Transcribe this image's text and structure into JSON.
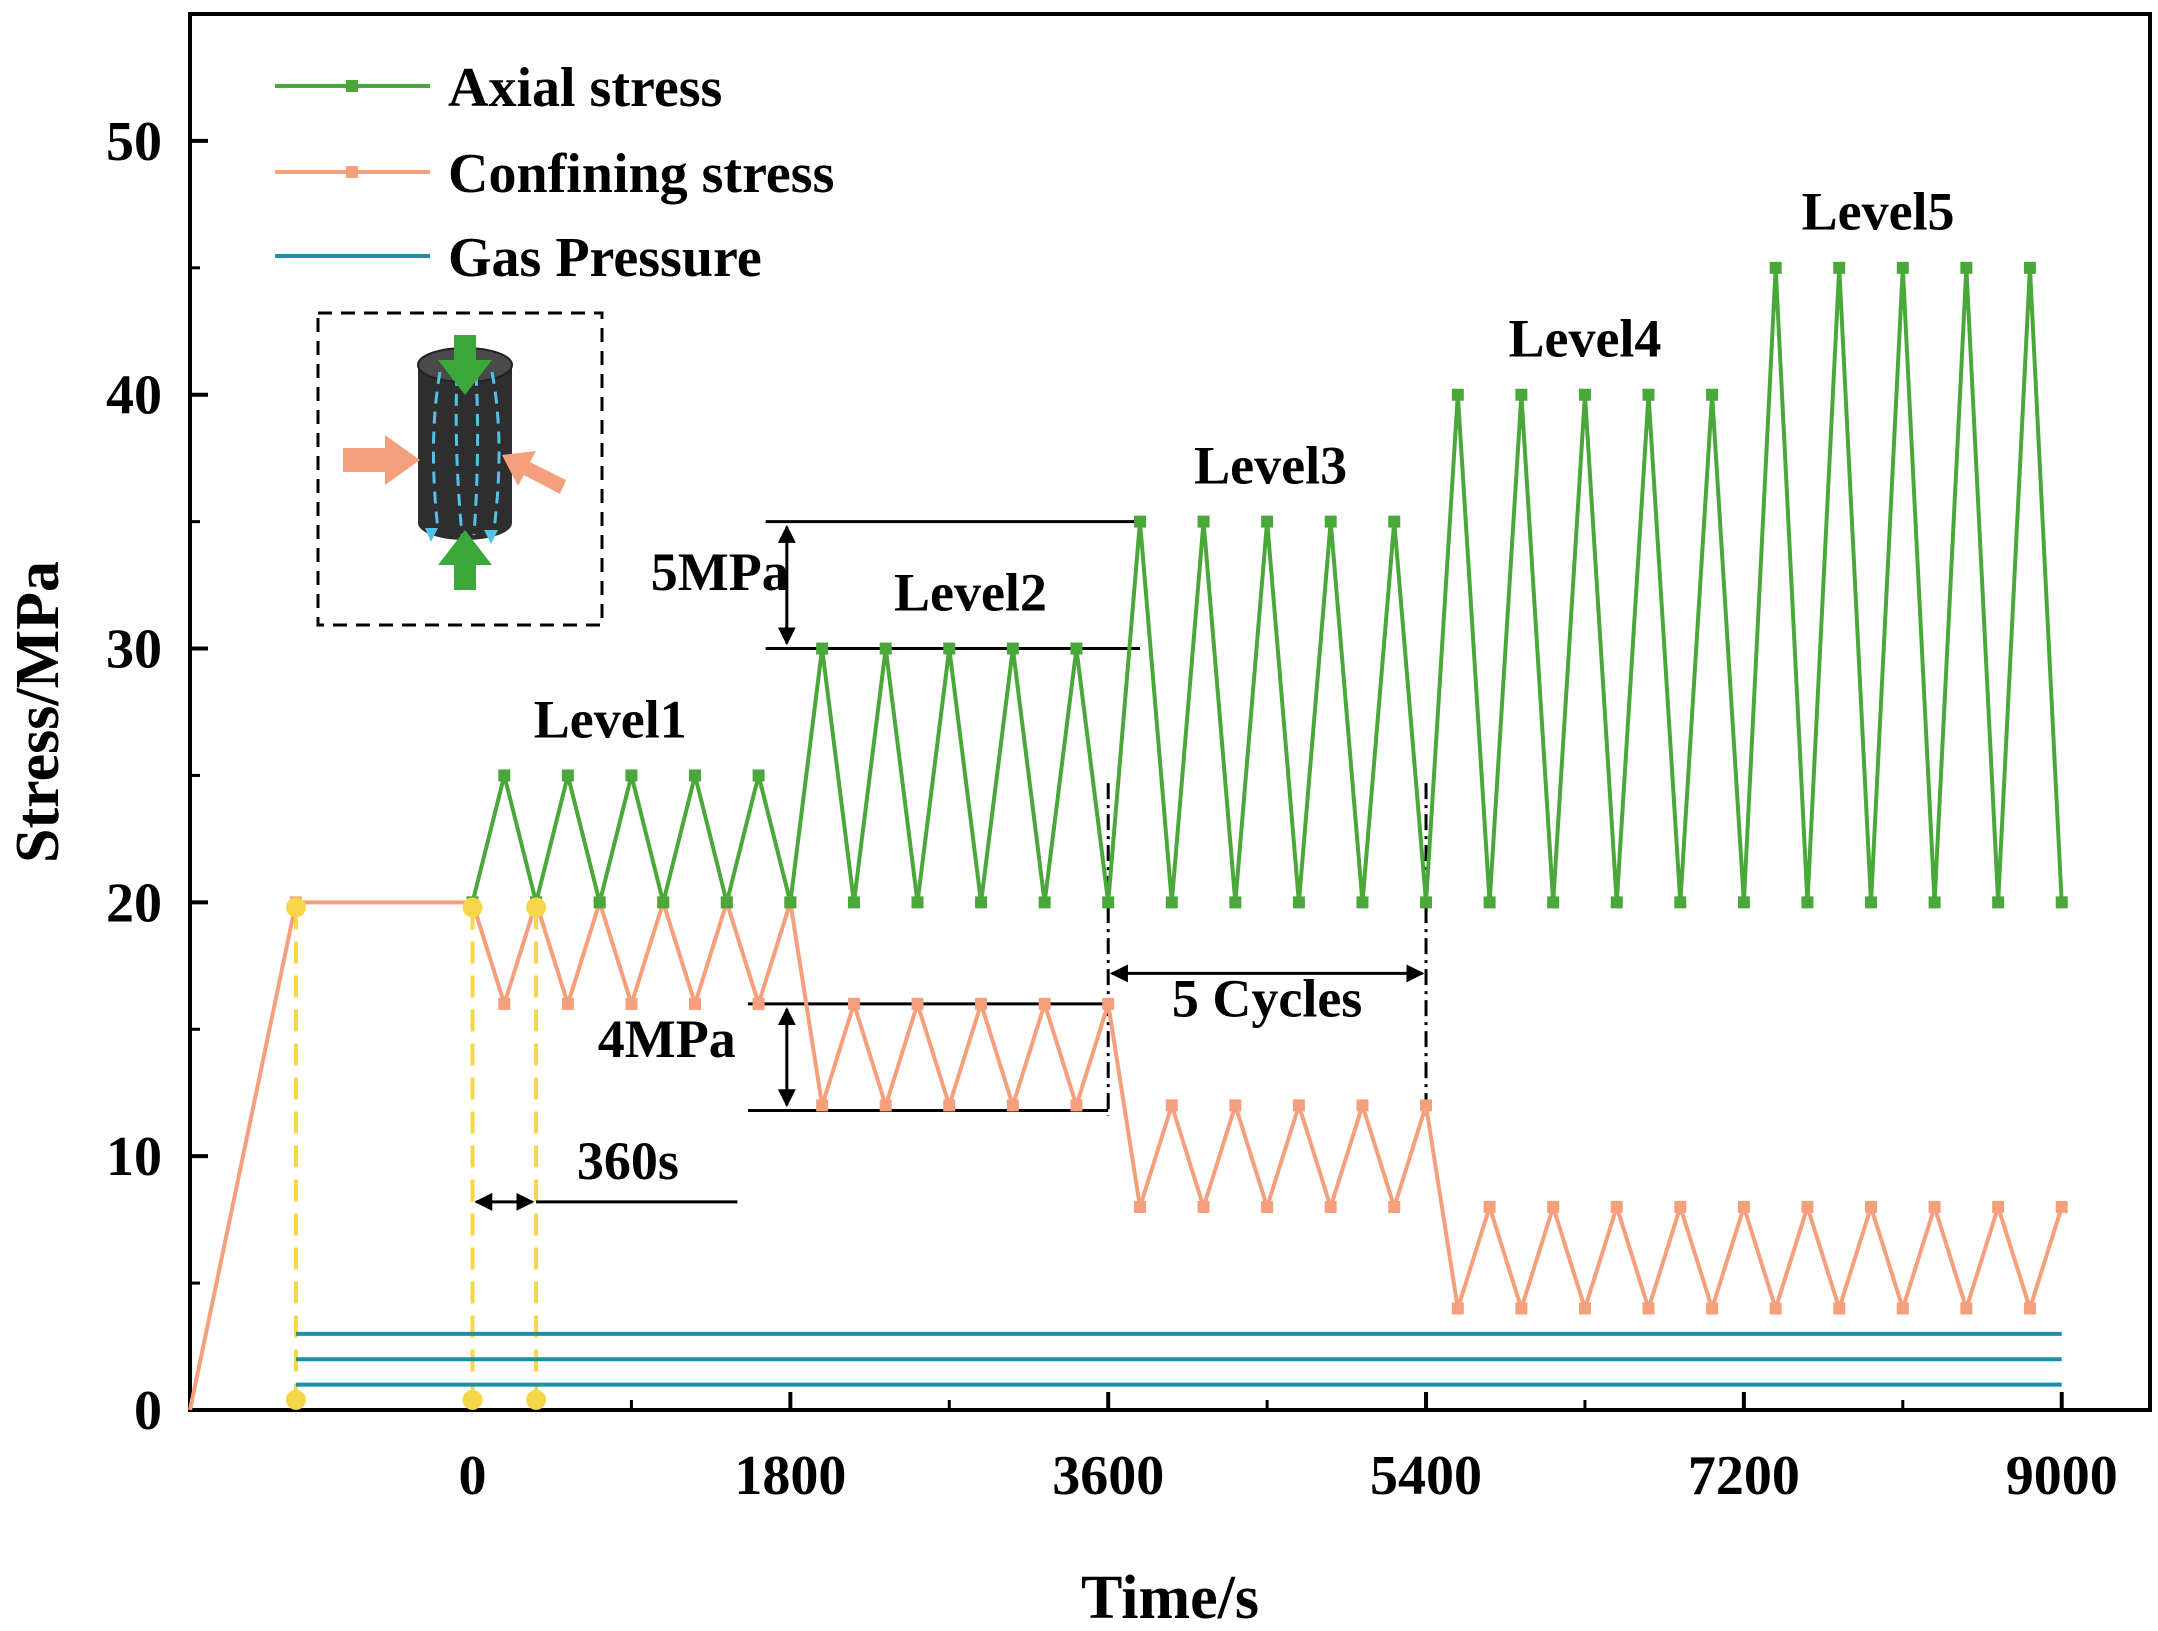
{
  "chart_data": {
    "type": "line",
    "xlabel": "Time/s",
    "ylabel": "Stress/MPa",
    "xlim": [
      -1600,
      9500
    ],
    "ylim": [
      0,
      55
    ],
    "xticks": [
      0,
      1800,
      3600,
      5400,
      7200,
      9000
    ],
    "yticks": [
      0,
      10,
      20,
      30,
      40,
      50
    ],
    "legend_position": "top-left",
    "series": [
      {
        "name": "Axial stress",
        "color": "#4aa83a",
        "marker": "square",
        "x": [
          0,
          180,
          360,
          540,
          720,
          900,
          1080,
          1260,
          1440,
          1620,
          1800,
          1980,
          2160,
          2340,
          2520,
          2700,
          2880,
          3060,
          3240,
          3420,
          3600,
          3780,
          3960,
          4140,
          4320,
          4500,
          4680,
          4860,
          5040,
          5220,
          5400,
          5580,
          5760,
          5940,
          6120,
          6300,
          6480,
          6660,
          6840,
          7020,
          7200,
          7380,
          7560,
          7740,
          7920,
          8100,
          8280,
          8460,
          8640,
          8820,
          9000
        ],
        "y": [
          20,
          25,
          20,
          25,
          20,
          25,
          20,
          25,
          20,
          25,
          20,
          30,
          20,
          30,
          20,
          30,
          20,
          30,
          20,
          30,
          20,
          35,
          20,
          35,
          20,
          35,
          20,
          35,
          20,
          35,
          20,
          40,
          20,
          40,
          20,
          40,
          20,
          40,
          20,
          40,
          20,
          45,
          20,
          45,
          20,
          45,
          20,
          45,
          20,
          45,
          20
        ]
      },
      {
        "name": "Confining stress",
        "color": "#f5a07c",
        "marker": "square",
        "x": [
          -1600,
          -1000,
          0,
          180,
          360,
          540,
          720,
          900,
          1080,
          1260,
          1440,
          1620,
          1800,
          1980,
          2160,
          2340,
          2520,
          2700,
          2880,
          3060,
          3240,
          3420,
          3600,
          3780,
          3960,
          4140,
          4320,
          4500,
          4680,
          4860,
          5040,
          5220,
          5400,
          5580,
          5760,
          5940,
          6120,
          6300,
          6480,
          6660,
          6840,
          7020,
          7200,
          7380,
          7560,
          7740,
          7920,
          8100,
          8280,
          8460,
          8640,
          8820,
          9000
        ],
        "y": [
          0,
          20,
          20,
          16,
          20,
          16,
          20,
          16,
          20,
          16,
          20,
          16,
          20,
          12,
          16,
          12,
          16,
          12,
          16,
          12,
          16,
          12,
          16,
          8,
          12,
          8,
          12,
          8,
          12,
          8,
          12,
          8,
          12,
          4,
          8,
          4,
          8,
          4,
          8,
          4,
          8,
          4,
          8,
          4,
          8,
          4,
          8,
          4,
          8,
          4,
          8,
          4,
          8
        ]
      },
      {
        "name": "Gas Pressure",
        "color": "#1f8ea8",
        "marker": "none",
        "levels": [
          1,
          2,
          3
        ],
        "x_range": [
          -1000,
          9000
        ]
      }
    ],
    "reference_markers": {
      "color": "#f7d64a",
      "x": [
        -1000,
        0,
        360
      ]
    },
    "annotations": [
      {
        "text": "Level1",
        "x": 780,
        "y": 26.5
      },
      {
        "text": "Level2",
        "x": 2820,
        "y": 31.5
      },
      {
        "text": "Level3",
        "x": 4520,
        "y": 36.5
      },
      {
        "text": "Level4",
        "x": 6300,
        "y": 41.5
      },
      {
        "text": "Level5",
        "x": 7960,
        "y": 46.5
      },
      {
        "text": "5MPa",
        "x": 1400,
        "y": 32.3
      },
      {
        "text": "4MPa",
        "x": 1100,
        "y": 13.9
      },
      {
        "text": "5 Cycles",
        "x": 4500,
        "y": 15.5
      },
      {
        "text": "360s",
        "x": 880,
        "y": 9.1
      }
    ]
  }
}
